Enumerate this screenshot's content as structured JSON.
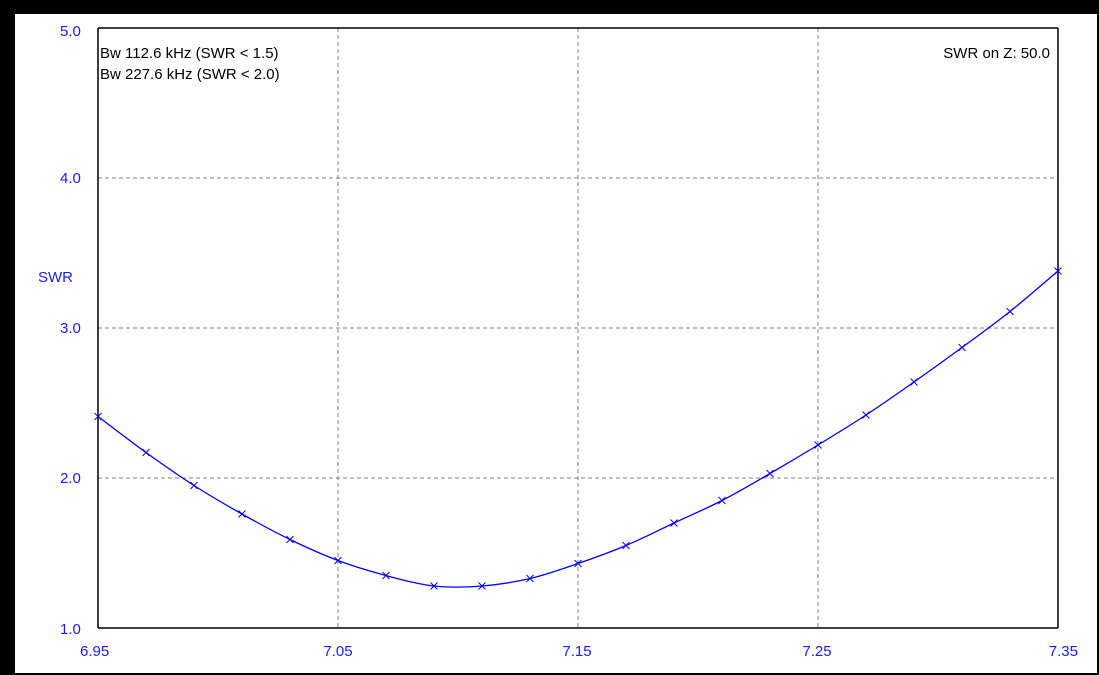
{
  "colors": {
    "curve": "#0000ff",
    "axis_labels": "#1a1aff",
    "grid": "#808080",
    "background": "#ffffff",
    "frame": "#000000"
  },
  "annotations": {
    "bw_15": "Bw 112.6 kHz (SWR < 1.5)",
    "bw_20": "Bw 227.6 kHz (SWR < 2.0)",
    "swr_on_z": "SWR on Z: 50.0"
  },
  "chart_data": {
    "type": "line",
    "title": "",
    "xlabel": "",
    "ylabel": "SWR",
    "xlim": [
      6.95,
      7.35
    ],
    "ylim": [
      1.0,
      5.0
    ],
    "grid": true,
    "x_ticks": [
      "6.95",
      "7.05",
      "7.15",
      "7.25",
      "7.35"
    ],
    "x_tick_values": [
      6.95,
      7.05,
      7.15,
      7.25,
      7.35
    ],
    "y_ticks": [
      "1.0",
      "2.0",
      "3.0",
      "4.0",
      "5.0"
    ],
    "y_tick_values": [
      1.0,
      2.0,
      3.0,
      4.0,
      5.0
    ],
    "series": [
      {
        "x": [
          6.95,
          6.97,
          6.99,
          7.01,
          7.03,
          7.05,
          7.07,
          7.09,
          7.11,
          7.13,
          7.15,
          7.17,
          7.19,
          7.21,
          7.23,
          7.25,
          7.27,
          7.29,
          7.31,
          7.33,
          7.35
        ],
        "values": [
          2.41,
          2.17,
          1.95,
          1.76,
          1.59,
          1.45,
          1.35,
          1.28,
          1.28,
          1.33,
          1.43,
          1.55,
          1.7,
          1.85,
          2.03,
          2.22,
          2.42,
          2.64,
          2.87,
          3.11,
          3.38
        ]
      }
    ]
  }
}
